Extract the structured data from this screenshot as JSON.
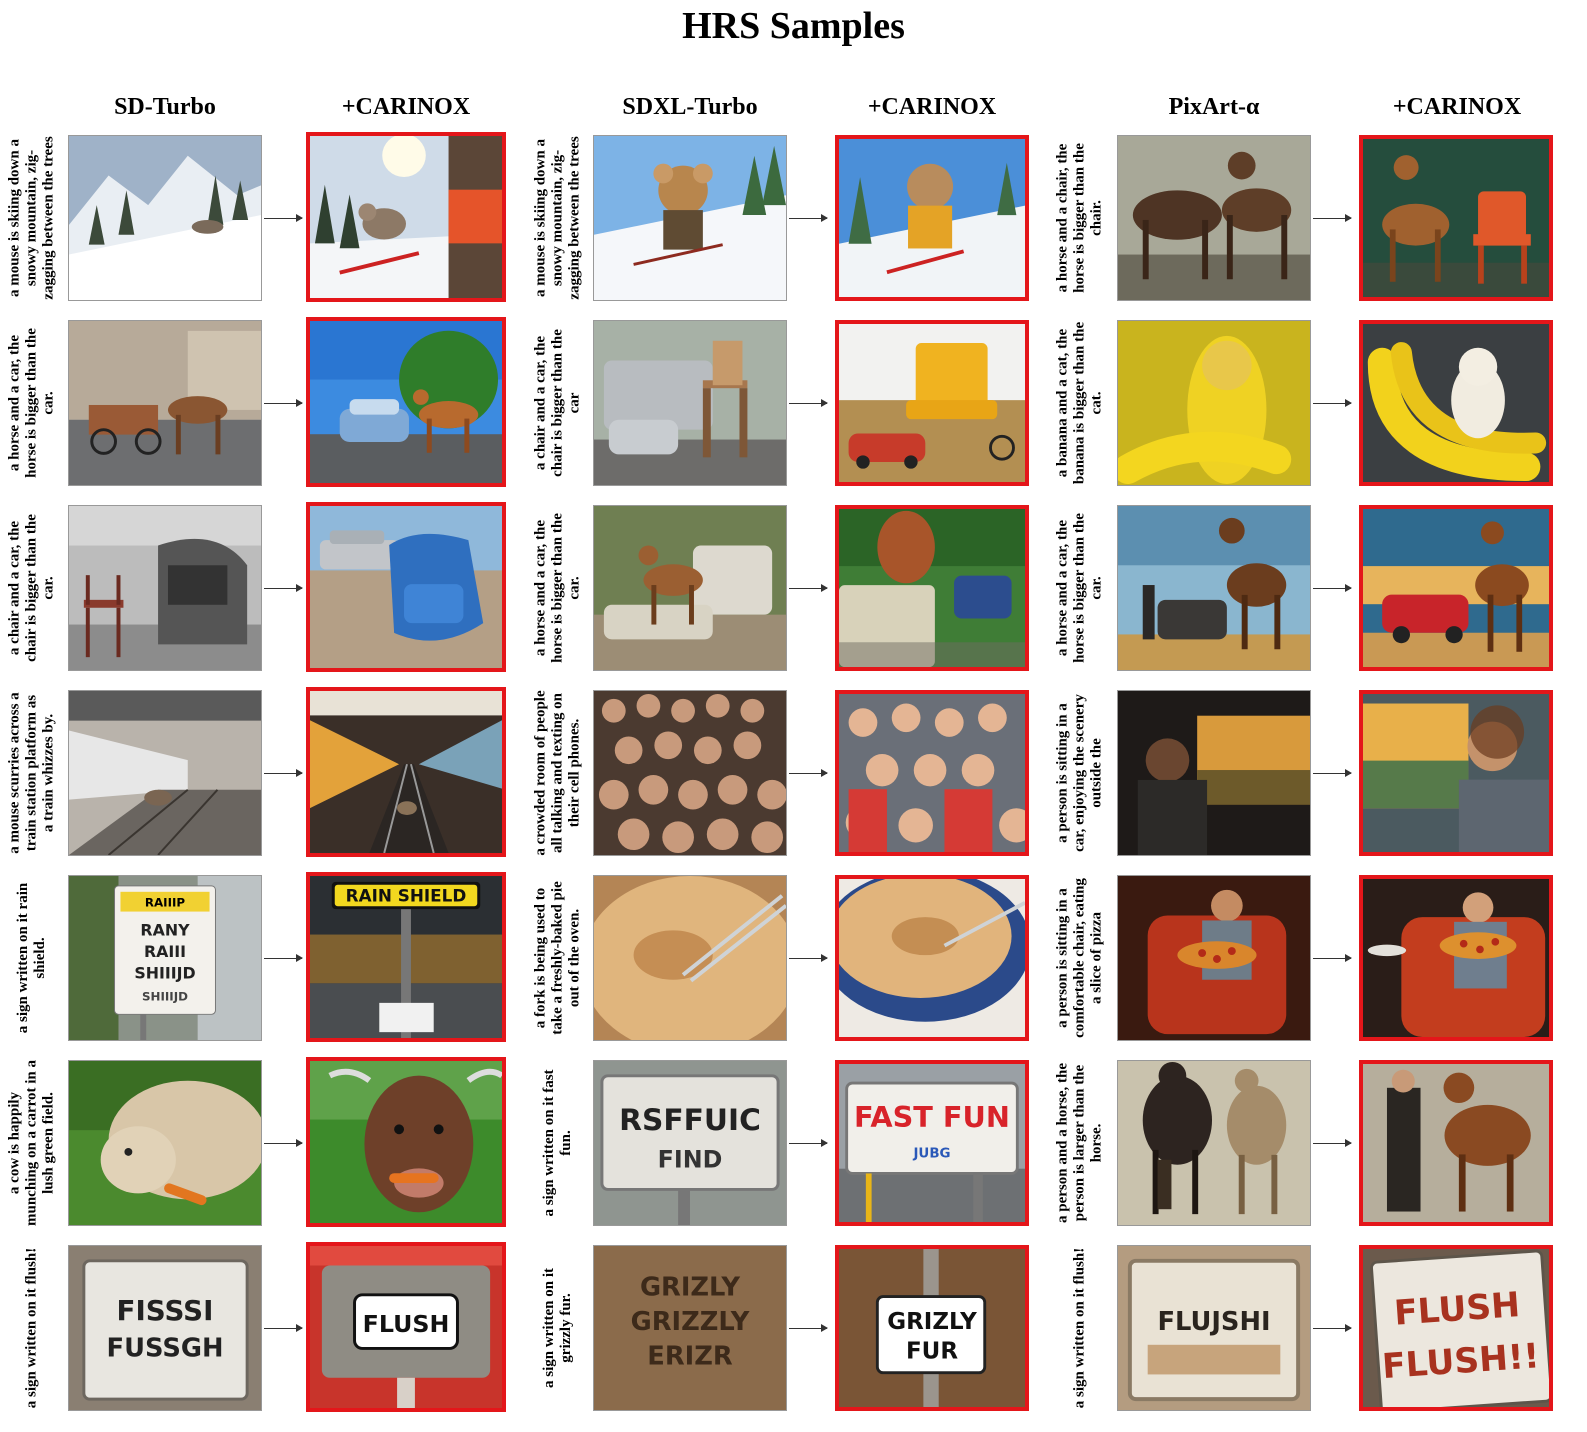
{
  "title": "HRS Samples",
  "columns": [
    {
      "base": "SD-Turbo",
      "method": "+CARINOX"
    },
    {
      "base": "SDXL-Turbo",
      "method": "+CARINOX"
    },
    {
      "base": "PixArt-α",
      "method": "+CARINOX"
    }
  ],
  "prompts": [
    [
      "a mouse is skiing down a snowy mountain, zig-zagging between the trees",
      "a horse and a car, the horse is bigger than the car.",
      "a chair and a car, the chair is bigger than the car.",
      "a mouse scurries across a train station platform as a train whizzes by.",
      "a sign written on it rain shield.",
      "a cow is happily munching on a carrot in a lush green field.",
      "a sign written on it flush!"
    ],
    [
      "a mouse is skiing down a snowy mountain, zig-zagging between the trees",
      "a chair and a car, the chair is bigger than the car",
      "a horse and a car, the horse is bigger than the car.",
      "a crowded room of people all talking and texting on their cell phones.",
      "a fork is being used to take a freshly-baked pie out of the oven.",
      "a sign written on it fast fun.",
      "a sign written on it grizzly fur."
    ],
    [
      "a horse and a chair, the horse is bigger than the chair.",
      "a banana and a cat, the banana is bigger than the cat.",
      "a horse and a car, the horse is bigger than the car.",
      "a person is sitting in a car, enjoying the scenery outside the",
      "a person is sitting in a comfortable chair, eating a slice of pizza",
      "a person and a horse, the person is larger than the horse.",
      "a sign written on it flush!"
    ]
  ],
  "sign_texts": {
    "sd_rain_base": [
      "RAIIIP",
      "RANY",
      "RAIII",
      "SHIIIJD",
      "SHIIIJD"
    ],
    "sd_rain_method": "RAIN SHIELD",
    "sd_flush_base": [
      "FISSSI",
      "FUSSGH"
    ],
    "sd_flush_method": "FLUSH",
    "sdxl_fast_base": [
      "RSFFUIC",
      "FIND"
    ],
    "sdxl_fast_method": [
      "FAST FUN",
      "JUBG"
    ],
    "sdxl_grizzly_base": [
      "GRIZLY",
      "GRIZZLY",
      "ERIZR"
    ],
    "sdxl_grizzly_method": [
      "GRIZLY",
      "FUR"
    ],
    "pix_flush_base": "FLUJSHI",
    "pix_flush_method": [
      "FLUSH",
      "FLUSH!!"
    ]
  },
  "colors": {
    "highlight_border": "#e4161a"
  }
}
